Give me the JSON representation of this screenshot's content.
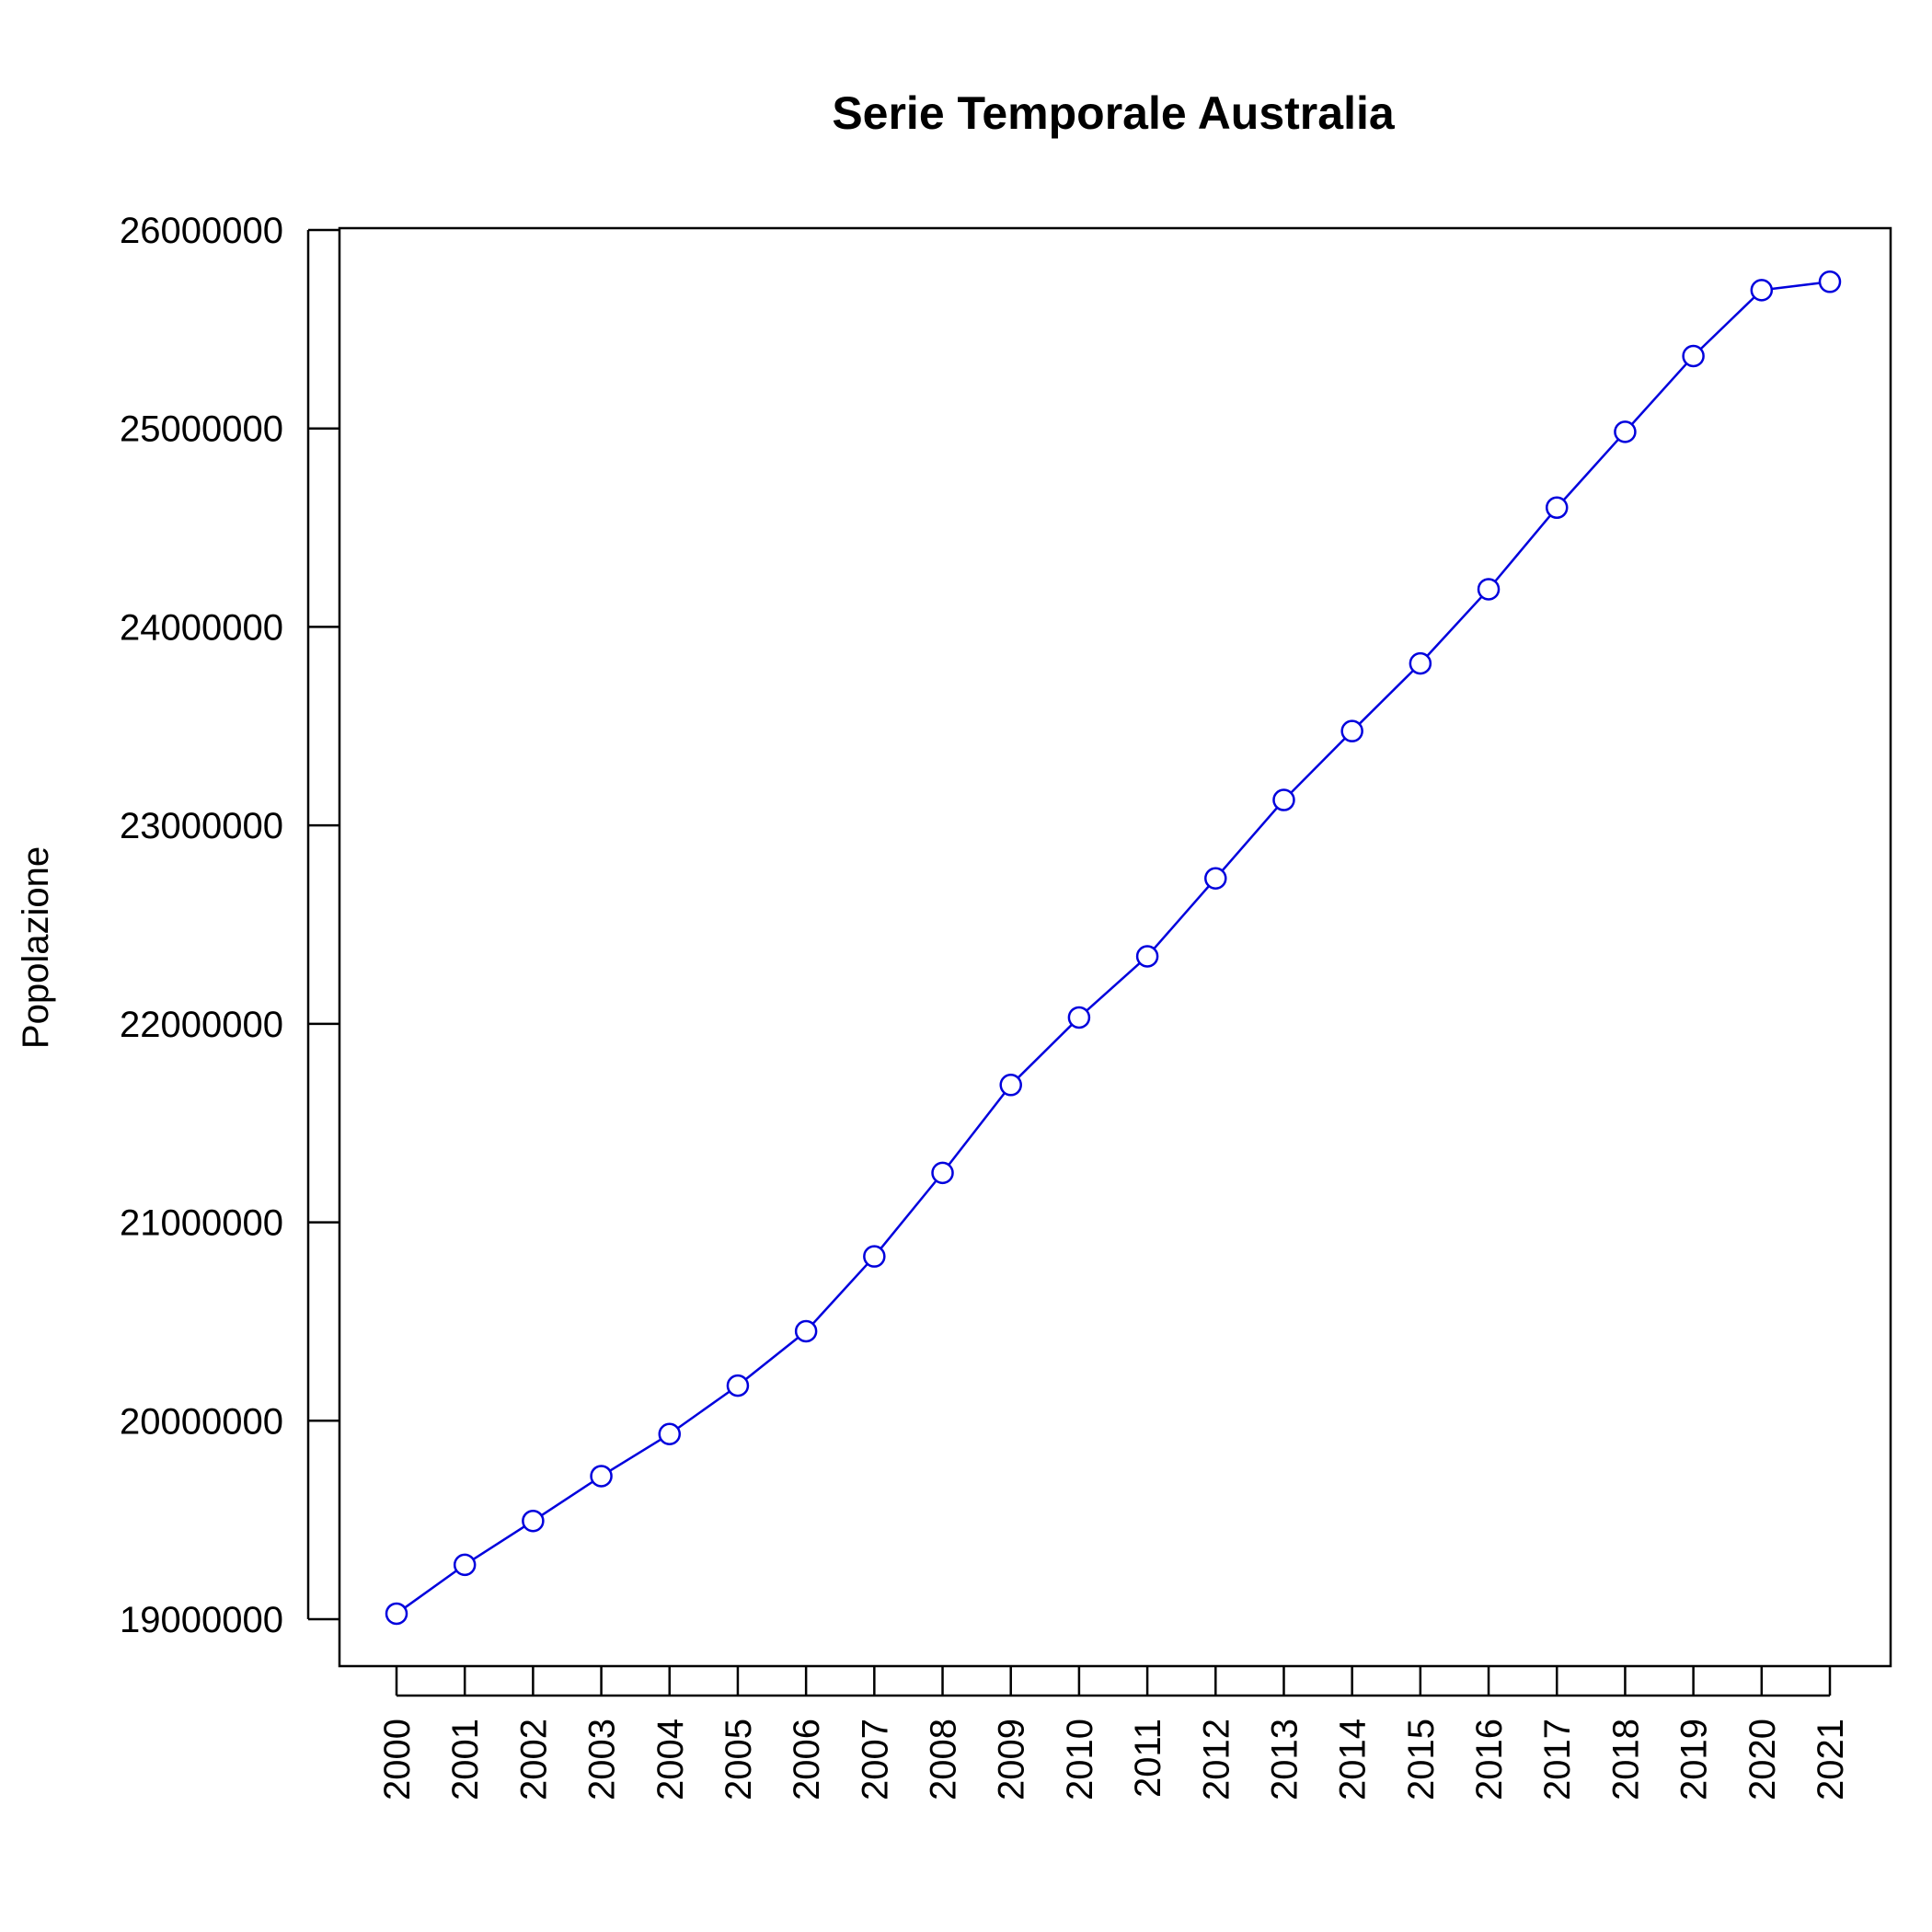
{
  "chart_data": {
    "type": "line",
    "title": "Serie Temporale Australia",
    "xlabel": "",
    "ylabel": "Popolazione",
    "categories": [
      "2000",
      "2001",
      "2002",
      "2003",
      "2004",
      "2005",
      "2006",
      "2007",
      "2008",
      "2009",
      "2010",
      "2011",
      "2012",
      "2013",
      "2014",
      "2015",
      "2016",
      "2017",
      "2018",
      "2019",
      "2020",
      "2021"
    ],
    "series": [
      {
        "values": [
          19028000,
          19274000,
          19495000,
          19721000,
          19933000,
          20177000,
          20451000,
          20828000,
          21249000,
          21692000,
          22032000,
          22340000,
          22733000,
          23128000,
          23475000,
          23816000,
          24190000,
          24601000,
          24983000,
          25365000,
          25697000,
          25739000
        ]
      }
    ],
    "yticks": [
      19000000,
      20000000,
      21000000,
      22000000,
      23000000,
      24000000,
      25000000,
      26000000
    ],
    "ylim": [
      18750000,
      26000000
    ],
    "marker": "open-circle",
    "line_color": "#0000dd",
    "grid": false,
    "legend": "none"
  }
}
